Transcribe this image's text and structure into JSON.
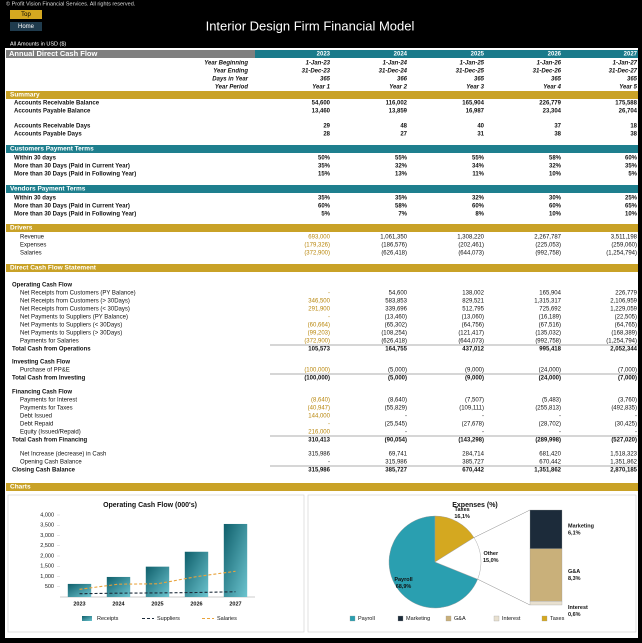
{
  "header": {
    "copyright": "© Profit Vision Financial Services. All rights reserved.",
    "buttons": [
      "Top",
      "Home"
    ],
    "title": "Interior Design Firm Financial Model",
    "currency_note": "All Amounts in  USD ($)"
  },
  "sheet": {
    "title": "Annual Direct Cash Flow",
    "years": [
      "2023",
      "2024",
      "2025",
      "2026",
      "2027"
    ],
    "period_rows": [
      {
        "label": "Year Beginning",
        "values": [
          "1-Jan-23",
          "1-Jan-24",
          "1-Jan-25",
          "1-Jan-26",
          "1-Jan-27"
        ]
      },
      {
        "label": "Year Ending",
        "values": [
          "31-Dec-23",
          "31-Dec-24",
          "31-Dec-25",
          "31-Dec-26",
          "31-Dec-27"
        ]
      },
      {
        "label": "Days in Year",
        "values": [
          "365",
          "366",
          "365",
          "365",
          "365"
        ]
      },
      {
        "label": "Year Period",
        "values": [
          "Year 1",
          "Year 2",
          "Year 3",
          "Year 4",
          "Year 5"
        ]
      }
    ],
    "summary": {
      "title": "Summary",
      "rows": [
        {
          "label": "Accounts Receivable Balance",
          "values": [
            "54,600",
            "116,002",
            "165,904",
            "226,779",
            "175,588"
          ]
        },
        {
          "label": "Accounts Payable Balance",
          "values": [
            "13,460",
            "13,859",
            "16,987",
            "23,304",
            "26,704"
          ]
        },
        {
          "label": "Accounts Receivable Days",
          "values": [
            "29",
            "48",
            "40",
            "37",
            "18"
          ]
        },
        {
          "label": "Accounts Payable Days",
          "values": [
            "28",
            "27",
            "31",
            "38",
            "38"
          ]
        }
      ]
    },
    "customers": {
      "title": "Customers Payment Terms",
      "rows": [
        {
          "label": "Within 30 days",
          "values": [
            "50%",
            "55%",
            "55%",
            "58%",
            "60%"
          ]
        },
        {
          "label": "More than 30 Days (Paid in Current Year)",
          "values": [
            "35%",
            "32%",
            "34%",
            "32%",
            "35%"
          ]
        },
        {
          "label": "More than 30 Days (Paid in Following Year)",
          "values": [
            "15%",
            "13%",
            "11%",
            "10%",
            "5%"
          ]
        }
      ]
    },
    "vendors": {
      "title": "Vendors Payment Terms",
      "rows": [
        {
          "label": "Within 30 days",
          "values": [
            "35%",
            "35%",
            "32%",
            "30%",
            "25%"
          ]
        },
        {
          "label": "More than 30 Days (Paid in Current Year)",
          "values": [
            "60%",
            "58%",
            "60%",
            "60%",
            "65%"
          ]
        },
        {
          "label": "More than 30 Days (Paid in Following Year)",
          "values": [
            "5%",
            "7%",
            "8%",
            "10%",
            "10%"
          ]
        }
      ]
    },
    "drivers": {
      "title": "Drivers",
      "rows": [
        {
          "label": "Revenue",
          "values": [
            "693,000",
            "1,061,350",
            "1,308,220",
            "2,267,787",
            "3,511,198"
          ]
        },
        {
          "label": "Expenses",
          "values": [
            "(179,326)",
            "(186,576)",
            "(202,461)",
            "(225,053)",
            "(259,060)"
          ]
        },
        {
          "label": "Salaries",
          "values": [
            "(372,900)",
            "(626,418)",
            "(644,073)",
            "(992,758)",
            "(1,254,794)"
          ]
        }
      ]
    },
    "dcf": {
      "title": "Direct Cash Flow Statement",
      "groups": [
        {
          "title": "Operating Cash Flow",
          "rows": [
            {
              "label": "Net Receipts from Customers (PY Balance)",
              "values": [
                "-",
                "54,600",
                "138,002",
                "165,904",
                "226,779"
              ]
            },
            {
              "label": "Net Receipts from Customers (> 30Days)",
              "values": [
                "346,500",
                "583,853",
                "829,521",
                "1,315,317",
                "2,106,959"
              ]
            },
            {
              "label": "Net Receipts from Customers (< 30Days)",
              "values": [
                "291,900",
                "339,696",
                "512,795",
                "725,692",
                "1,229,059"
              ]
            },
            {
              "label": "Net Payments to Suppliers (PY Balance)",
              "values": [
                "-",
                "(13,460)",
                "(13,060)",
                "(16,189)",
                "(22,505)"
              ]
            },
            {
              "label": "Net Payments to Suppliers (< 30Days)",
              "values": [
                "(60,664)",
                "(65,302)",
                "(64,756)",
                "(67,516)",
                "(64,765)"
              ]
            },
            {
              "label": "Net Payments to Suppliers (> 30Days)",
              "values": [
                "(99,203)",
                "(108,254)",
                "(121,417)",
                "(135,032)",
                "(168,389)"
              ]
            },
            {
              "label": "Payments for Salaries",
              "values": [
                "(372,900)",
                "(626,418)",
                "(644,073)",
                "(992,758)",
                "(1,254,794)"
              ]
            }
          ],
          "total": {
            "label": "Total Cash from Operations",
            "values": [
              "105,573",
              "164,755",
              "437,012",
              "995,418",
              "2,052,344"
            ]
          }
        },
        {
          "title": "Investing Cash Flow",
          "rows": [
            {
              "label": "Purchase of PP&E",
              "values": [
                "(100,000)",
                "(5,000)",
                "(9,000)",
                "(24,000)",
                "(7,000)"
              ]
            }
          ],
          "total": {
            "label": "Total Cash from Investing",
            "values": [
              "(100,000)",
              "(5,000)",
              "(9,000)",
              "(24,000)",
              "(7,000)"
            ]
          }
        },
        {
          "title": "Financing Cash Flow",
          "rows": [
            {
              "label": "Payments for Interest",
              "values": [
                "(8,640)",
                "(8,640)",
                "(7,507)",
                "(5,483)",
                "(3,760)"
              ]
            },
            {
              "label": "Payments for Taxes",
              "values": [
                "(40,947)",
                "(55,829)",
                "(109,111)",
                "(255,813)",
                "(492,835)"
              ]
            },
            {
              "label": "Debt Issued",
              "values": [
                "144,000",
                "-",
                "-",
                "-",
                "-"
              ]
            },
            {
              "label": "Debt Repaid",
              "values": [
                "-",
                "(25,545)",
                "(27,678)",
                "(28,702)",
                "(30,425)"
              ]
            },
            {
              "label": "Equity (Issued/Repaid)",
              "values": [
                "216,000",
                "-",
                "-",
                "-",
                "-"
              ]
            }
          ],
          "total": {
            "label": "Total Cash from Financing",
            "values": [
              "310,413",
              "(90,054)",
              "(143,298)",
              "(289,998)",
              "(527,020)"
            ]
          }
        }
      ],
      "closing": [
        {
          "label": "Net Increase (decrease) in Cash",
          "values": [
            "315,986",
            "69,741",
            "284,714",
            "681,420",
            "1,518,323"
          ]
        },
        {
          "label": "Opening Cash Balance",
          "values": [
            "-",
            "315,986",
            "385,727",
            "670,442",
            "1,351,862"
          ]
        },
        {
          "label": "Closing Cash Balance",
          "values": [
            "315,986",
            "385,727",
            "670,442",
            "1,351,862",
            "2,870,185"
          ]
        }
      ]
    },
    "charts_title": "Charts"
  },
  "chart_data": [
    {
      "type": "bar",
      "title": "Operating Cash Flow (000's)",
      "categories": [
        "2023",
        "2024",
        "2025",
        "2026",
        "2027"
      ],
      "series": [
        {
          "name": "Receipts",
          "type": "bar",
          "color": "#1f8a99",
          "values": [
            638,
            978,
            1480,
            2207,
            3563
          ]
        },
        {
          "name": "Suppliers",
          "type": "line",
          "color": "#1c2b3a",
          "dashed": true,
          "values": [
            160,
            187,
            199,
            219,
            256
          ]
        },
        {
          "name": "Salaries",
          "type": "line",
          "color": "#e8a33c",
          "dashed": true,
          "values": [
            373,
            626,
            644,
            993,
            1255
          ]
        }
      ],
      "ylim": [
        0,
        4000
      ],
      "yticks": [
        500,
        {
          "value": 1000,
          "label": "1,000"
        },
        {
          "value": 1500,
          "label": "1,500"
        },
        {
          "value": 2000,
          "label": "2,000"
        },
        {
          "value": 2500,
          "label": "2,500"
        },
        {
          "value": 3000,
          "label": "3,000"
        },
        {
          "value": 3500,
          "label": "3,500"
        },
        {
          "value": 4000,
          "label": "4,000"
        }
      ],
      "grid": false
    },
    {
      "type": "pie",
      "title": "Expenses (%)",
      "categories": [
        "Payroll",
        "Taxes",
        "Other"
      ],
      "values": [
        68.9,
        16.1,
        15.0
      ],
      "value_labels": [
        "68,9%",
        "16,1%",
        "15,0%"
      ],
      "colors": [
        "#2a9fb0",
        "#d4a820",
        "#ffffff"
      ],
      "breakdown": {
        "categories": [
          "Marketing",
          "G&A",
          "Interest"
        ],
        "values": [
          6.1,
          8.3,
          0.6
        ],
        "value_labels": [
          "6,1%",
          "8,3%",
          "0,6%"
        ],
        "colors": [
          "#1c2b3a",
          "#c9b07a",
          "#e8e0d0"
        ]
      }
    }
  ]
}
